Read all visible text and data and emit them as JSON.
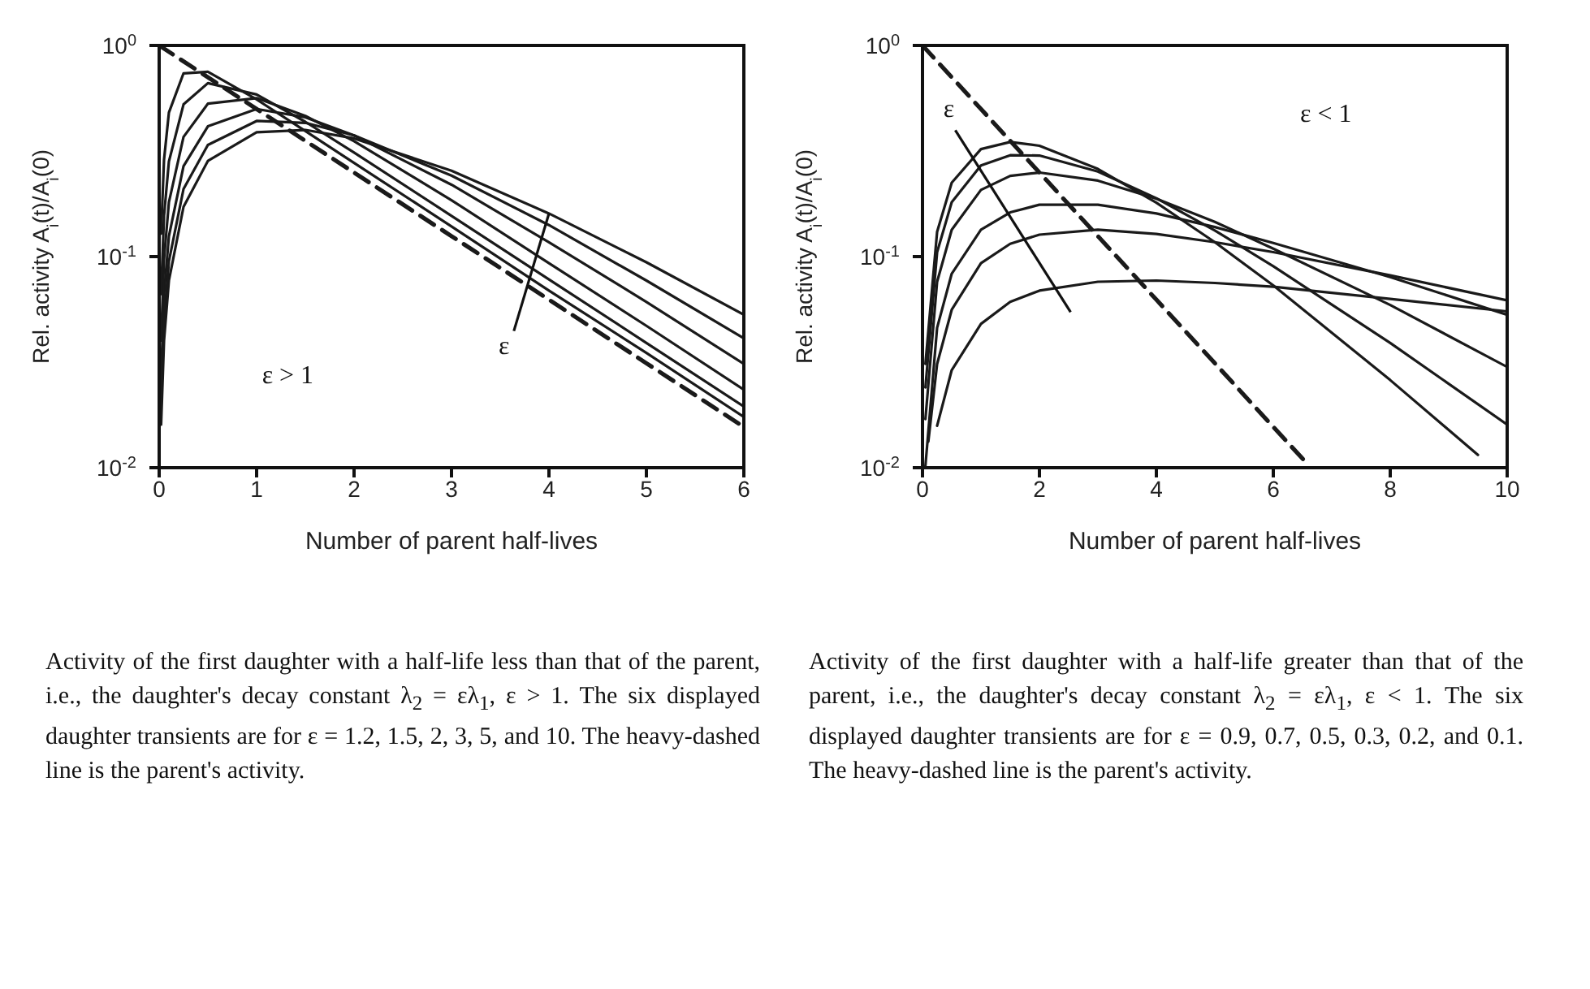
{
  "chart_data": [
    {
      "type": "line",
      "xlabel": "Number of parent half-lives",
      "ylabel": "Rel. activity  A$_{i}$(t)/A$_{i}$(0)",
      "xlim": [
        0,
        6
      ],
      "xticks": [
        0,
        1,
        2,
        3,
        4,
        5,
        6
      ],
      "ylim": [
        0.01,
        1
      ],
      "yticks": [
        {
          "value": 0.01,
          "label": "10$^{-2}$"
        },
        {
          "value": 0.1,
          "label": "10$^{-1}$"
        },
        {
          "value": 1,
          "label": "10$^{0}$"
        }
      ],
      "log": "y",
      "marker": "none",
      "series": [
        {
          "color": "#1a1a1a",
          "x": [
            0.02,
            0.05,
            0.1,
            0.25,
            0.5,
            1,
            1.5,
            2,
            3,
            4,
            5,
            6
          ],
          "values": [
            0.016,
            0.04,
            0.077,
            0.172,
            0.284,
            0.388,
            0.398,
            0.363,
            0.255,
            0.16,
            0.094,
            0.053
          ]
        },
        {
          "color": "#1a1a1a",
          "x": [
            0.02,
            0.05,
            0.1,
            0.25,
            0.5,
            1,
            1.5,
            2,
            3,
            4,
            5,
            6
          ],
          "values": [
            0.02,
            0.05,
            0.095,
            0.209,
            0.338,
            0.439,
            0.43,
            0.375,
            0.242,
            0.141,
            0.077,
            0.041
          ]
        },
        {
          "color": "#1a1a1a",
          "x": [
            0.02,
            0.05,
            0.1,
            0.25,
            0.5,
            1,
            1.5,
            2,
            3,
            4,
            5,
            6
          ],
          "values": [
            0.027,
            0.066,
            0.125,
            0.268,
            0.414,
            0.5,
            0.457,
            0.375,
            0.219,
            0.117,
            0.061,
            0.031
          ]
        },
        {
          "color": "#1a1a1a",
          "x": [
            0.02,
            0.05,
            0.1,
            0.25,
            0.5,
            1,
            1.5,
            2,
            3,
            4,
            5,
            6
          ],
          "values": [
            0.04,
            0.097,
            0.181,
            0.369,
            0.53,
            0.563,
            0.464,
            0.352,
            0.185,
            0.093,
            0.047,
            0.0234
          ]
        },
        {
          "color": "#1a1a1a",
          "x": [
            0.02,
            0.05,
            0.1,
            0.25,
            0.5,
            1,
            1.5,
            2,
            3,
            4,
            5,
            6
          ],
          "values": [
            0.0665,
            0.156,
            0.282,
            0.526,
            0.663,
            0.586,
            0.435,
            0.311,
            0.156,
            0.078,
            0.039,
            0.0195
          ]
        },
        {
          "color": "#1a1a1a",
          "x": [
            0.02,
            0.05,
            0.1,
            0.25,
            0.5,
            1,
            1.5,
            2,
            3,
            4,
            5,
            6
          ],
          "values": [
            0.1285,
            0.288,
            0.481,
            0.738,
            0.751,
            0.555,
            0.393,
            0.278,
            0.139,
            0.069,
            0.035,
            0.0174
          ]
        },
        {
          "color": "#1a1a1a",
          "line_style": "dashed",
          "x": [
            0,
            1,
            2,
            3,
            4,
            5,
            6
          ],
          "values": [
            1,
            0.5,
            0.25,
            0.125,
            0.0625,
            0.03125,
            0.0156
          ]
        }
      ],
      "annotations": [
        "Activity of the first daughter with a half-life less than that of the parent, i.e., the daughter's decay constant λ$_{2}$ = ελ$_{1}$, ε > 1. The six displayed daughter transients are for ε = 1.2, 1.5, 2, 3, 5, and 10. The heavy-dashed line is the parent's activity.",
        "ε > 1",
        {
          "text": "ε",
          "x": 4,
          "y": 0.16
        }
      ]
    },
    {
      "type": "line",
      "xlabel": "Number of parent half-lives",
      "ylabel": "Rel. activity  A$_{i}$(t)/A$_{i}$(0)",
      "xlim": [
        0,
        10
      ],
      "xticks": [
        0,
        2,
        4,
        6,
        8,
        10
      ],
      "ylim": [
        0.01,
        1
      ],
      "yticks": [
        {
          "value": 0.01,
          "label": "10$^{-2}$"
        },
        {
          "value": 0.1,
          "label": "10$^{-1}$"
        },
        {
          "value": 1,
          "label": "10$^{0}$"
        }
      ],
      "log": "y",
      "marker": "none",
      "series": [
        {
          "color": "#1a1a1a",
          "x": [
            0.05,
            0.25,
            0.5,
            1,
            1.5,
            2,
            3,
            4,
            5,
            6,
            8,
            9.5
          ],
          "values": [
            0.031,
            0.131,
            0.224,
            0.323,
            0.349,
            0.335,
            0.26,
            0.18,
            0.117,
            0.073,
            0.026,
            0.0115
          ]
        },
        {
          "color": "#1a1a1a",
          "x": [
            0.05,
            0.25,
            0.5,
            1,
            1.5,
            2,
            3,
            4,
            5,
            6,
            8,
            10
          ],
          "values": [
            0.024,
            0.105,
            0.181,
            0.27,
            0.302,
            0.301,
            0.253,
            0.189,
            0.133,
            0.09,
            0.039,
            0.016
          ]
        },
        {
          "color": "#1a1a1a",
          "x": [
            0.05,
            0.25,
            0.5,
            1,
            1.5,
            2,
            3,
            4,
            5,
            6,
            8,
            10
          ],
          "values": [
            0.017,
            0.076,
            0.134,
            0.207,
            0.241,
            0.25,
            0.229,
            0.188,
            0.146,
            0.109,
            0.059,
            0.03
          ]
        },
        {
          "color": "#1a1a1a",
          "x": [
            0.05,
            0.25,
            0.5,
            1,
            1.5,
            2,
            3,
            4,
            5,
            6,
            8,
            10
          ],
          "values": [
            0.0102,
            0.046,
            0.083,
            0.134,
            0.162,
            0.176,
            0.176,
            0.16,
            0.138,
            0.116,
            0.08,
            0.053
          ]
        },
        {
          "color": "#1a1a1a",
          "x": [
            0.1,
            0.25,
            0.5,
            1,
            1.5,
            2,
            3,
            4,
            5,
            6,
            8,
            10
          ],
          "values": [
            0.0133,
            0.031,
            0.056,
            0.093,
            0.115,
            0.127,
            0.134,
            0.128,
            0.117,
            0.105,
            0.0815,
            0.062
          ]
        },
        {
          "color": "#1a1a1a",
          "x": [
            0.25,
            0.5,
            1,
            1.5,
            2,
            3,
            4,
            5,
            6,
            8,
            10
          ],
          "values": [
            0.0158,
            0.029,
            0.048,
            0.061,
            0.069,
            0.076,
            0.077,
            0.075,
            0.072,
            0.063,
            0.055
          ]
        },
        {
          "color": "#1a1a1a",
          "line_style": "dashed",
          "x": [
            0,
            1,
            2,
            3,
            4,
            5,
            6,
            6.6
          ],
          "values": [
            1,
            0.5,
            0.25,
            0.125,
            0.0625,
            0.03125,
            0.0156,
            0.0103
          ]
        }
      ],
      "annotations": [
        "Activity of the first daughter with a half-life greater than that of the parent, i.e., the daughter's decay constant λ$_{2}$ = ελ$_{1}$, ε < 1. The six displayed daughter transients are for ε = 0.9, 0.7, 0.5, 0.3, 0.2, and 0.1. The heavy-dashed line is the parent's activity.",
        "ε < 1",
        "ε"
      ]
    }
  ]
}
